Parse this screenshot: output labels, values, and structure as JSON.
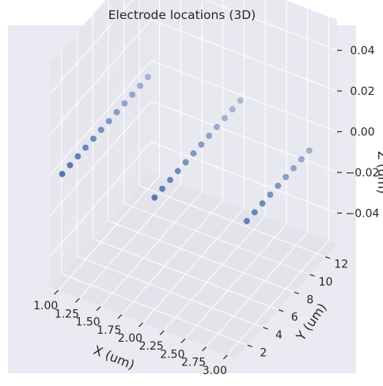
{
  "chart_data": {
    "type": "scatter",
    "projection": "3d",
    "title": "Electrode locations (3D)",
    "xlabel": "X (um)",
    "ylabel": "Y (um)",
    "zlabel": "Z (um)",
    "xticks": [
      "1.00",
      "1.25",
      "1.50",
      "1.75",
      "2.00",
      "2.25",
      "2.50",
      "2.75",
      "3.00"
    ],
    "yticks": [
      "2",
      "4",
      "6",
      "8",
      "10",
      "12"
    ],
    "zticks": [
      "0.04",
      "0.02",
      "0.00",
      "−0.02",
      "−0.04"
    ],
    "xlim": [
      0.9,
      3.1
    ],
    "ylim": [
      0.5,
      13.5
    ],
    "zlim": [
      -0.055,
      0.055
    ],
    "grid": true,
    "marker_color": "#4c72b0",
    "background_color": "#eaeaf2",
    "series": [
      {
        "points": [
          {
            "x": 1,
            "y": 1,
            "z": 0
          },
          {
            "x": 1,
            "y": 2,
            "z": 0
          },
          {
            "x": 1,
            "y": 3,
            "z": 0
          },
          {
            "x": 1,
            "y": 4,
            "z": 0
          },
          {
            "x": 1,
            "y": 5,
            "z": 0
          },
          {
            "x": 1,
            "y": 6,
            "z": 0
          },
          {
            "x": 1,
            "y": 7,
            "z": 0
          },
          {
            "x": 1,
            "y": 8,
            "z": 0
          },
          {
            "x": 1,
            "y": 9,
            "z": 0
          },
          {
            "x": 1,
            "y": 10,
            "z": 0
          },
          {
            "x": 1,
            "y": 11,
            "z": 0
          },
          {
            "x": 1,
            "y": 12,
            "z": 0
          },
          {
            "x": 2,
            "y": 2,
            "z": 0
          },
          {
            "x": 2,
            "y": 3,
            "z": 0
          },
          {
            "x": 2,
            "y": 4,
            "z": 0
          },
          {
            "x": 2,
            "y": 5,
            "z": 0
          },
          {
            "x": 2,
            "y": 6,
            "z": 0
          },
          {
            "x": 2,
            "y": 7,
            "z": 0
          },
          {
            "x": 2,
            "y": 8,
            "z": 0
          },
          {
            "x": 2,
            "y": 9,
            "z": 0
          },
          {
            "x": 2,
            "y": 10,
            "z": 0
          },
          {
            "x": 2,
            "y": 11,
            "z": 0
          },
          {
            "x": 2,
            "y": 12,
            "z": 0
          },
          {
            "x": 2,
            "y": 13,
            "z": 0
          },
          {
            "x": 3,
            "y": 3,
            "z": 0
          },
          {
            "x": 3,
            "y": 4,
            "z": 0
          },
          {
            "x": 3,
            "y": 5,
            "z": 0
          },
          {
            "x": 3,
            "y": 6,
            "z": 0
          },
          {
            "x": 3,
            "y": 7,
            "z": 0
          },
          {
            "x": 3,
            "y": 8,
            "z": 0
          },
          {
            "x": 3,
            "y": 9,
            "z": 0
          },
          {
            "x": 3,
            "y": 10,
            "z": 0
          },
          {
            "x": 3,
            "y": 11,
            "z": 0
          }
        ]
      }
    ]
  }
}
